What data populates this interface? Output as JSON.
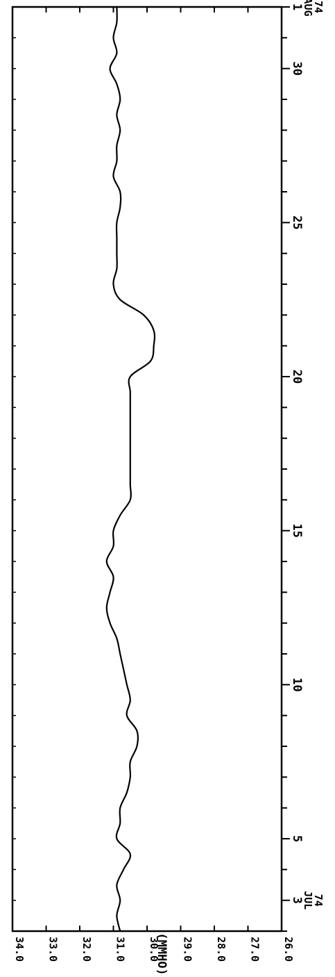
{
  "chart_data": {
    "type": "line",
    "title": "",
    "ylabel": "(MMHO)",
    "xlabel": "",
    "ylim": [
      26.0,
      34.0
    ],
    "y_ticks": [
      "34.0",
      "33.0",
      "32.0",
      "31.0",
      "30.0",
      "29.0",
      "28.0",
      "27.0",
      "26.0"
    ],
    "x_range": [
      2,
      32
    ],
    "x_ticks": [
      {
        "x": 3,
        "label": "3",
        "sub": [
          "JUL",
          "74"
        ]
      },
      {
        "x": 5,
        "label": "5",
        "sub": []
      },
      {
        "x": 10,
        "label": "10",
        "sub": []
      },
      {
        "x": 15,
        "label": "15",
        "sub": []
      },
      {
        "x": 20,
        "label": "20",
        "sub": []
      },
      {
        "x": 25,
        "label": "25",
        "sub": []
      },
      {
        "x": 30,
        "label": "30",
        "sub": []
      },
      {
        "x": 32,
        "label": "1",
        "sub": [
          "AUG",
          "74"
        ]
      }
    ],
    "series": [
      {
        "color": "#000000",
        "x": [
          2.0,
          2.5,
          3.0,
          3.5,
          4.0,
          4.5,
          5.0,
          5.5,
          6.0,
          6.5,
          7.0,
          7.5,
          8.0,
          8.5,
          9.0,
          9.5,
          10.0,
          10.5,
          11.0,
          11.5,
          12.0,
          12.5,
          13.0,
          13.5,
          14.0,
          14.5,
          15.0,
          15.5,
          16.0,
          16.5,
          17.0,
          17.5,
          18.0,
          18.5,
          19.0,
          19.5,
          20.0,
          20.5,
          21.0,
          21.5,
          22.0,
          22.5,
          23.0,
          23.5,
          24.0,
          24.5,
          25.0,
          25.5,
          26.0,
          26.5,
          27.0,
          27.5,
          28.0,
          28.5,
          29.0,
          29.5,
          30.0,
          30.5,
          31.0,
          31.5,
          32.0
        ],
        "values": [
          30.8,
          30.9,
          30.8,
          30.9,
          30.7,
          30.5,
          30.9,
          30.8,
          30.8,
          30.6,
          30.5,
          30.5,
          30.3,
          30.3,
          30.6,
          30.5,
          30.6,
          30.7,
          30.8,
          30.9,
          31.1,
          31.2,
          31.1,
          31.0,
          31.2,
          31.0,
          31.0,
          30.8,
          30.5,
          30.5,
          30.5,
          30.5,
          30.5,
          30.5,
          30.5,
          30.5,
          30.5,
          29.9,
          29.8,
          29.8,
          30.1,
          30.8,
          31.0,
          30.9,
          30.9,
          30.9,
          30.9,
          30.8,
          30.8,
          31.0,
          30.9,
          30.9,
          30.8,
          30.9,
          30.8,
          30.9,
          31.1,
          30.9,
          31.0,
          30.9,
          30.9
        ]
      }
    ]
  }
}
